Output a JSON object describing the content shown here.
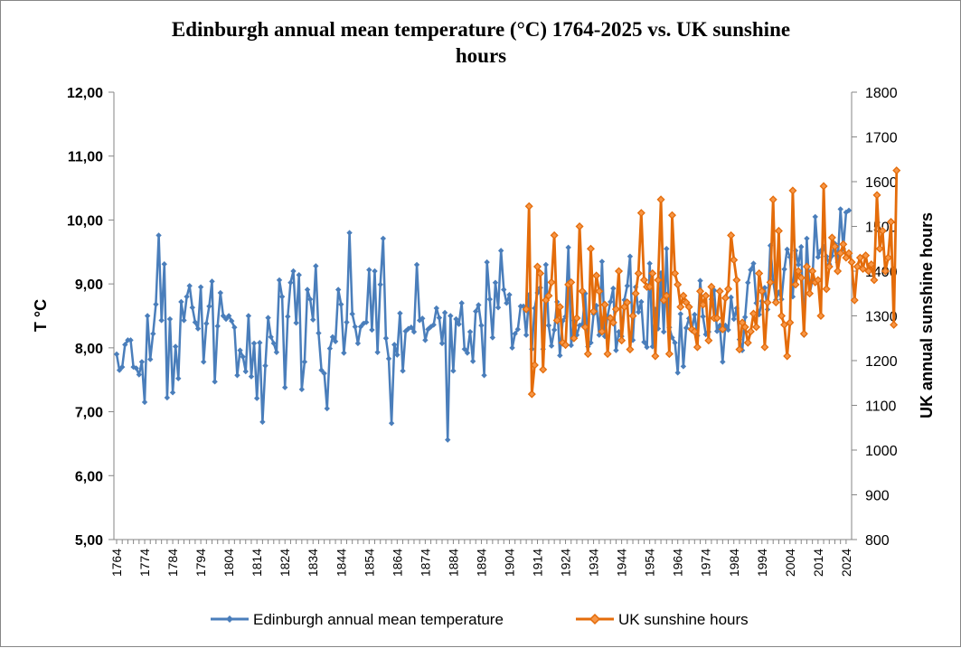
{
  "chart_data": {
    "type": "line",
    "title": "Edinburgh annual mean temperature (°C) 1764-2025 vs. UK sunshine hours",
    "title_lines": [
      "Edinburgh annual mean temperature (°C) 1764-2025 vs. UK sunshine",
      "hours"
    ],
    "ylabel": "T °C",
    "y2label": "UK annual sunshine hours",
    "ylim": [
      5,
      12
    ],
    "y2lim": [
      800,
      1800
    ],
    "xlim": [
      1764,
      2025
    ],
    "yticks": [
      "5,00",
      "6,00",
      "7,00",
      "8,00",
      "9,00",
      "10,00",
      "11,00",
      "12,00"
    ],
    "y2ticks": [
      "800",
      "900",
      "1000",
      "1100",
      "1200",
      "1300",
      "1400",
      "1500",
      "1600",
      "1700",
      "1800"
    ],
    "xticks": [
      "1764",
      "1774",
      "1784",
      "1794",
      "1804",
      "1814",
      "1824",
      "1834",
      "1844",
      "1854",
      "1864",
      "1874",
      "1884",
      "1894",
      "1904",
      "1914",
      "1924",
      "1934",
      "1944",
      "1954",
      "1964",
      "1974",
      "1984",
      "1994",
      "2004",
      "2014",
      "2024"
    ],
    "grid": false,
    "legend_position": "bottom",
    "series": [
      {
        "name": "Edinburgh annual mean temperature",
        "axis": "left",
        "color": "#4A7EBB",
        "marker": "diamond",
        "x_start": 1764,
        "values": [
          7.9,
          7.65,
          7.7,
          8.05,
          8.12,
          8.12,
          7.7,
          7.68,
          7.58,
          7.78,
          7.15,
          8.5,
          7.82,
          8.22,
          8.68,
          9.76,
          8.43,
          9.31,
          7.22,
          8.45,
          7.3,
          8.02,
          7.52,
          8.72,
          8.43,
          8.8,
          8.97,
          8.63,
          8.4,
          8.3,
          8.95,
          7.78,
          8.38,
          8.65,
          9.04,
          7.47,
          8.34,
          8.86,
          8.5,
          8.45,
          8.5,
          8.42,
          8.32,
          7.57,
          7.96,
          7.86,
          7.63,
          8.5,
          7.55,
          8.07,
          7.21,
          8.08,
          6.84,
          7.72,
          8.47,
          8.17,
          8.07,
          7.93,
          9.06,
          8.8,
          7.38,
          8.49,
          9.02,
          9.2,
          8.39,
          9.14,
          7.35,
          7.78,
          8.91,
          8.76,
          8.44,
          9.28,
          8.23,
          7.65,
          7.6,
          7.05,
          7.99,
          8.17,
          8.1,
          8.91,
          8.68,
          7.92,
          8.4,
          9.8,
          8.53,
          8.33,
          8.07,
          8.33,
          8.38,
          8.4,
          9.22,
          8.28,
          9.2,
          7.93,
          8.99,
          9.71,
          8.15,
          7.83,
          6.82,
          8.05,
          7.89,
          8.54,
          7.64,
          8.26,
          8.3,
          8.32,
          8.25,
          9.3,
          8.43,
          8.46,
          8.12,
          8.29,
          8.33,
          8.36,
          8.62,
          8.47,
          8.07,
          8.55,
          6.56,
          8.5,
          7.64,
          8.45,
          8.37,
          8.7,
          7.98,
          7.92,
          8.25,
          7.79,
          8.57,
          8.67,
          8.35,
          7.57,
          9.34,
          8.76,
          8.16,
          9.02,
          8.63,
          9.52,
          8.91,
          8.7,
          8.83,
          8.0,
          8.22,
          8.29,
          8.65,
          8.65,
          8.2,
          8.83,
          7.98,
          8.62,
          8.86,
          8.94,
          7.98,
          9.3,
          8.35,
          8.03,
          8.28,
          8.72,
          7.88,
          8.42,
          8.49,
          9.57,
          8.04,
          8.43,
          8.2,
          8.35,
          8.37,
          8.85,
          8.02,
          8.08,
          8.53,
          8.66,
          8.2,
          9.35,
          8.18,
          8.5,
          8.72,
          8.93,
          7.96,
          8.25,
          8.18,
          8.75,
          8.97,
          9.43,
          8.12,
          8.95,
          8.56,
          8.72,
          8.09,
          8.01,
          9.32,
          8.02,
          8.6,
          8.3,
          9.17,
          8.25,
          9.55,
          8.32,
          8.16,
          8.08,
          7.61,
          8.53,
          7.71,
          8.31,
          8.46,
          8.27,
          8.52,
          8.19,
          9.05,
          8.49,
          8.21,
          8.25,
          8.76,
          8.9,
          8.26,
          8.35,
          7.78,
          8.35,
          8.28,
          8.79,
          8.45,
          8.62,
          8.13,
          7.96,
          8.48,
          9.02,
          9.22,
          9.32,
          8.7,
          8.52,
          8.73,
          8.94,
          8.6,
          9.6,
          9.05,
          8.75,
          8.87,
          8.76,
          9.23,
          9.54,
          9.42,
          8.8,
          9.52,
          9.3,
          9.58,
          8.2,
          9.71,
          8.85,
          9.06,
          10.05,
          9.42,
          9.52,
          9.58,
          9.43,
          9.31,
          9.44,
          9.63,
          9.34,
          10.17,
          9.55,
          10.12,
          10.15
        ]
      },
      {
        "name": "UK sunshine hours",
        "axis": "right",
        "color": "#E46C0A",
        "marker": "diamond",
        "x_start": 1910,
        "values": [
          1315,
          1545,
          1125,
          1190,
          1410,
          1395,
          1180,
          1335,
          1345,
          1375,
          1480,
          1290,
          1320,
          1240,
          1235,
          1370,
          1375,
          1250,
          1295,
          1500,
          1355,
          1275,
          1215,
          1450,
          1310,
          1390,
          1355,
          1265,
          1325,
          1215,
          1295,
          1285,
          1315,
          1400,
          1245,
          1320,
          1330,
          1225,
          1300,
          1350,
          1395,
          1530,
          1380,
          1365,
          1365,
          1395,
          1210,
          1380,
          1560,
          1335,
          1345,
          1215,
          1525,
          1395,
          1370,
          1320,
          1345,
          1330,
          1320,
          1270,
          1265,
          1230,
          1355,
          1325,
          1345,
          1245,
          1365,
          1295,
          1295,
          1355,
          1270,
          1340,
          1360,
          1480,
          1425,
          1380,
          1225,
          1285,
          1275,
          1240,
          1265,
          1305,
          1275,
          1395,
          1355,
          1230,
          1330,
          1375,
          1560,
          1330,
          1490,
          1300,
          1280,
          1210,
          1285,
          1580,
          1370,
          1400,
          1385,
          1260,
          1410,
          1350,
          1400,
          1375,
          1380,
          1300,
          1590,
          1360,
          1410,
          1475,
          1455,
          1400,
          1440,
          1460,
          1430,
          1440,
          1420,
          1335,
          1410,
          1430,
          1405,
          1435,
          1400,
          1415,
          1380,
          1570,
          1450,
          1490,
          1400,
          1430,
          1510,
          1280,
          1625
        ]
      }
    ]
  }
}
